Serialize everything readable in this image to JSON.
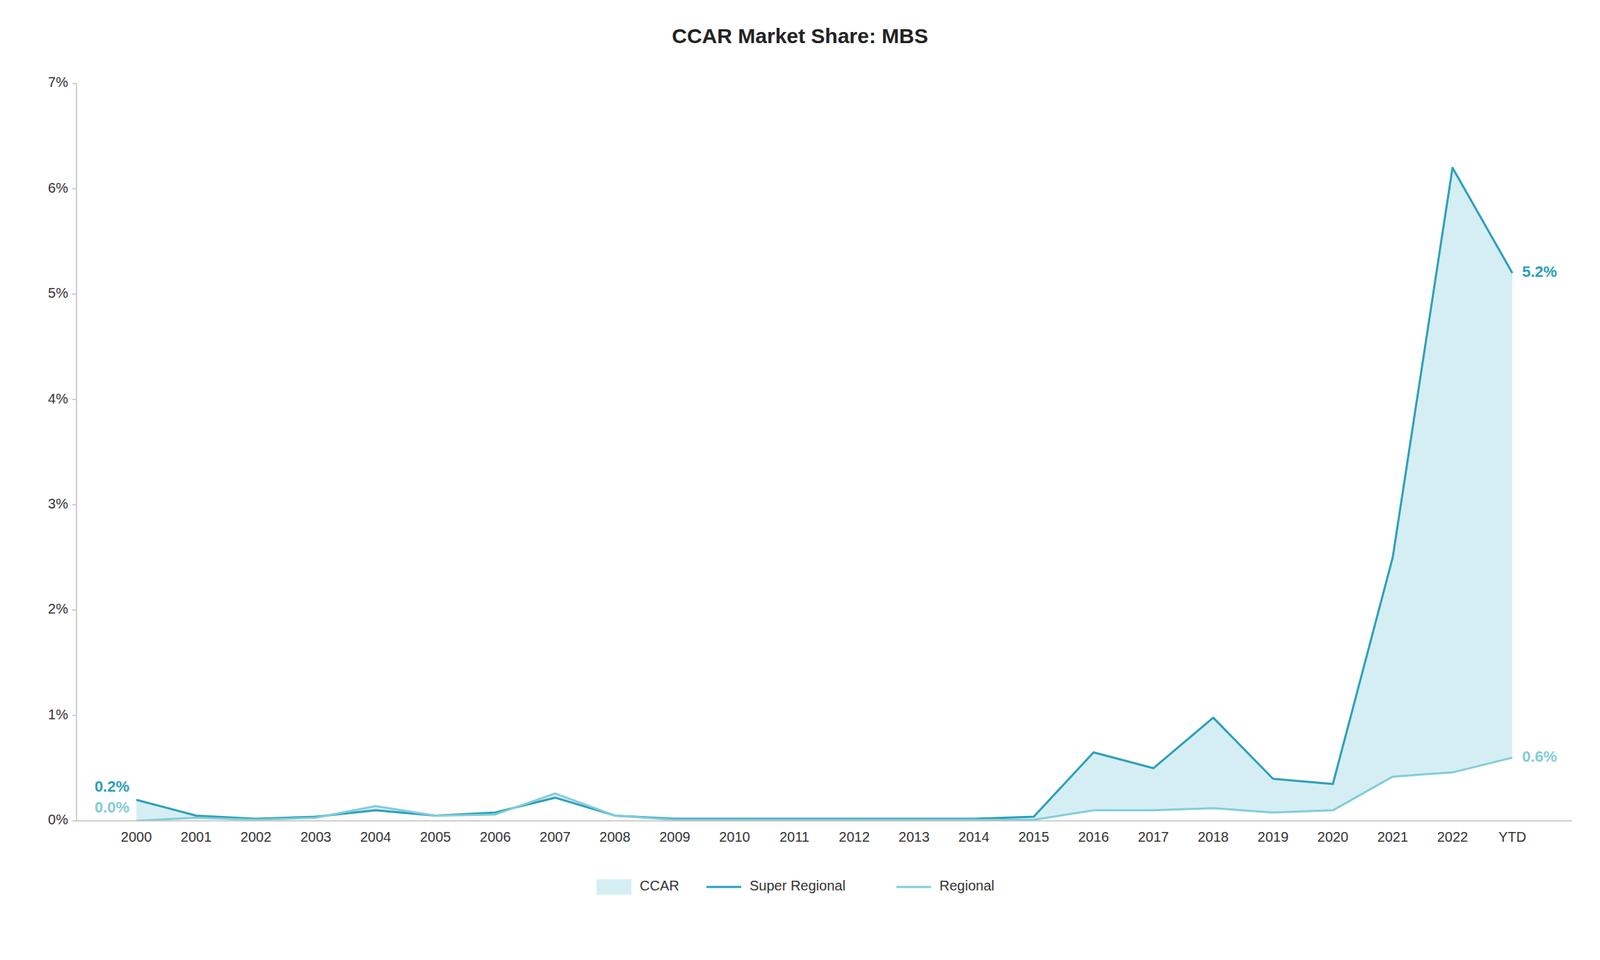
{
  "chart_data": {
    "type": "line",
    "title": "CCAR Market Share: MBS",
    "categories": [
      "2000",
      "2001",
      "2002",
      "2003",
      "2004",
      "2005",
      "2006",
      "2007",
      "2008",
      "2009",
      "2010",
      "2011",
      "2012",
      "2013",
      "2014",
      "2015",
      "2016",
      "2017",
      "2018",
      "2019",
      "2020",
      "2021",
      "2022",
      "YTD"
    ],
    "series": [
      {
        "name": "Super Regional",
        "color": "#2B9FBA",
        "values": [
          0.2,
          0.05,
          0.02,
          0.04,
          0.1,
          0.05,
          0.08,
          0.22,
          0.05,
          0.02,
          0.02,
          0.02,
          0.02,
          0.02,
          0.02,
          0.04,
          0.65,
          0.5,
          0.98,
          0.4,
          0.35,
          2.5,
          6.2,
          5.2
        ],
        "value_labels": [
          "0.2%",
          null,
          null,
          null,
          null,
          null,
          null,
          null,
          null,
          null,
          null,
          null,
          null,
          null,
          null,
          null,
          null,
          null,
          null,
          null,
          null,
          null,
          null,
          "5.2%"
        ]
      },
      {
        "name": "Regional",
        "color": "#82CDD8",
        "values": [
          0.0,
          0.03,
          0.01,
          0.03,
          0.14,
          0.05,
          0.06,
          0.26,
          0.05,
          0.01,
          0.01,
          0.01,
          0.01,
          0.01,
          0.01,
          0.01,
          0.1,
          0.1,
          0.12,
          0.08,
          0.1,
          0.42,
          0.46,
          0.6
        ],
        "value_labels": [
          "0.0%",
          null,
          null,
          null,
          null,
          null,
          null,
          null,
          null,
          null,
          null,
          null,
          null,
          null,
          null,
          null,
          null,
          null,
          null,
          null,
          null,
          null,
          null,
          "0.6%"
        ]
      }
    ],
    "fill": {
      "name": "CCAR",
      "color": "#D5EEF4"
    },
    "ylim": [
      0,
      7
    ],
    "yticks": [
      {
        "value": 0,
        "label": "0%"
      },
      {
        "value": 1,
        "label": "1%"
      },
      {
        "value": 2,
        "label": "2%"
      },
      {
        "value": 3,
        "label": "3%"
      },
      {
        "value": 4,
        "label": "4%"
      },
      {
        "value": 5,
        "label": "5%"
      },
      {
        "value": 6,
        "label": "6%"
      },
      {
        "value": 7,
        "label": "7%"
      }
    ],
    "grid": false,
    "legend": "bottom"
  }
}
